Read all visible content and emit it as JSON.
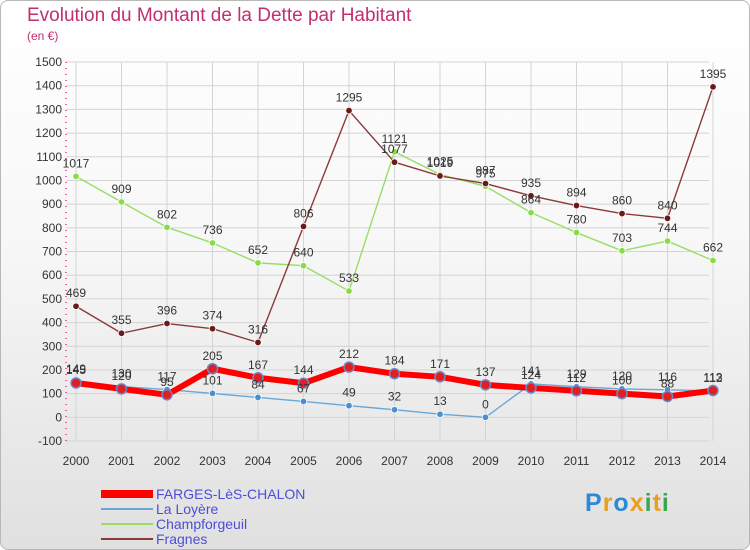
{
  "chart_data": {
    "type": "line",
    "title": "Evolution du Montant de la Dette par Habitant",
    "subtitle": "(en €)",
    "xlabel": "",
    "ylabel": "",
    "ylim": [
      -100,
      1500
    ],
    "yticks": [
      -100,
      0,
      100,
      200,
      300,
      400,
      500,
      600,
      700,
      800,
      900,
      1000,
      1100,
      1200,
      1300,
      1400,
      1500
    ],
    "categories": [
      "2000",
      "2001",
      "2002",
      "2003",
      "2004",
      "2005",
      "2006",
      "2007",
      "2008",
      "2009",
      "2010",
      "2011",
      "2012",
      "2013",
      "2014"
    ],
    "series": [
      {
        "name": "FARGES-LèS-CHALON",
        "color": "#ff0000",
        "marker_color": "#e02020",
        "values": [
          145,
          120,
          95,
          205,
          167,
          144,
          212,
          184,
          171,
          137,
          124,
          112,
          100,
          88,
          113
        ]
      },
      {
        "name": "La Loyère",
        "color": "#6aa6d6",
        "marker_color": "#4a90d0",
        "values": [
          149,
          130,
          117,
          101,
          84,
          67,
          49,
          32,
          13,
          0,
          141,
          129,
          120,
          116,
          112
        ]
      },
      {
        "name": "Champforgeuil",
        "color": "#99dd66",
        "marker_color": "#88dd44",
        "values": [
          1017,
          909,
          802,
          736,
          652,
          640,
          533,
          1121,
          1025,
          975,
          864,
          780,
          703,
          744,
          662
        ]
      },
      {
        "name": "Fragnes",
        "color": "#8b3a3a",
        "marker_color": "#6b1a1a",
        "values": [
          469,
          355,
          396,
          374,
          316,
          806,
          1295,
          1077,
          1019,
          987,
          935,
          894,
          860,
          840,
          1395
        ]
      }
    ],
    "legend_position": "bottom-left",
    "grid": true
  },
  "logo": {
    "text": "Proxiti",
    "letters": [
      {
        "ch": "P",
        "color": "#2b8ad8"
      },
      {
        "ch": "r",
        "color": "#e8a020"
      },
      {
        "ch": "o",
        "color": "#2b8ad8"
      },
      {
        "ch": "x",
        "color": "#e8a020"
      },
      {
        "ch": "i",
        "color": "#3aa84a"
      },
      {
        "ch": "t",
        "color": "#e8a020"
      },
      {
        "ch": "i",
        "color": "#3aa84a"
      }
    ]
  }
}
